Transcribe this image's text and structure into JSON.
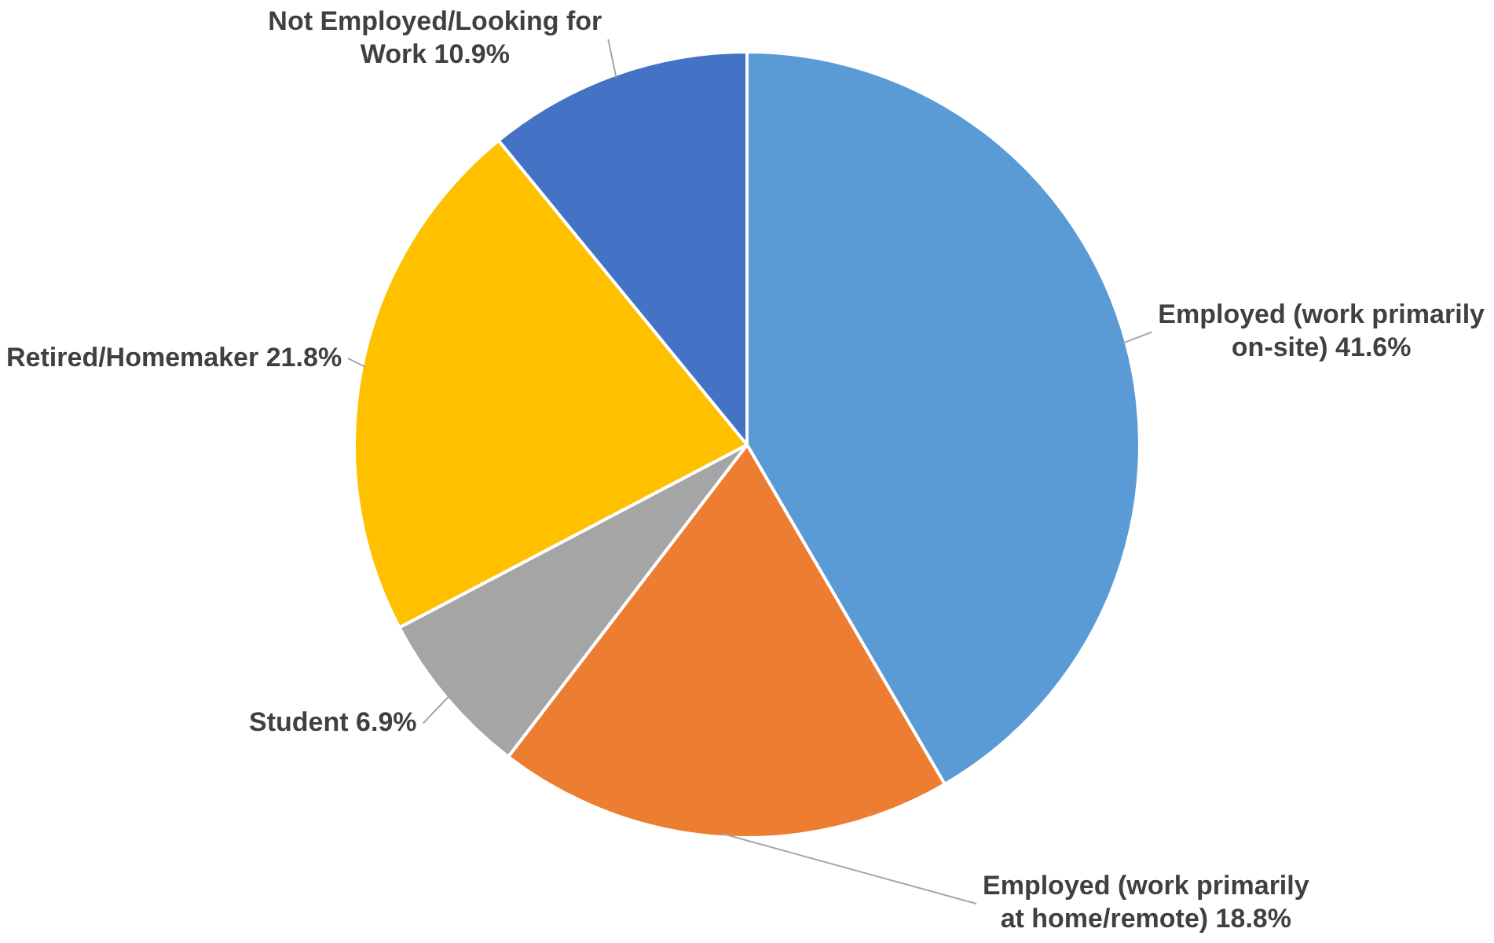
{
  "chart_data": {
    "type": "pie",
    "categories": [
      "Employed (work primarily on-site)",
      "Employed (work primarily at home/remote)",
      "Student",
      "Retired/Homemaker",
      "Not Employed/Looking for Work"
    ],
    "values": [
      41.6,
      18.8,
      6.9,
      21.8,
      10.9
    ],
    "value_labels": [
      "41.6%",
      "18.8%",
      "6.9%",
      "21.8%",
      "10.9%"
    ],
    "colors": [
      "#5b9bd5",
      "#ed7d31",
      "#a5a5a5",
      "#ffc000",
      "#4472c4"
    ],
    "legend": false
  }
}
